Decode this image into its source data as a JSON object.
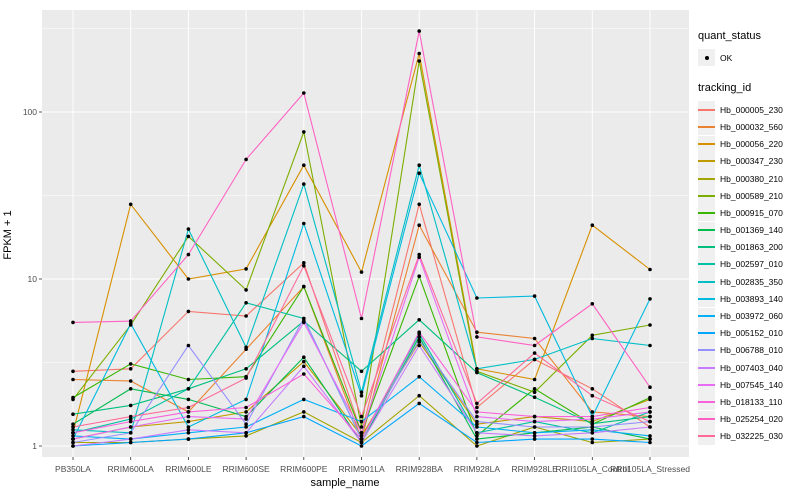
{
  "chart_data": {
    "type": "line",
    "title": "",
    "xlabel": "sample_name",
    "ylabel": "FPKM + 1",
    "y_scale": "log10",
    "y_ticks": [
      "1",
      "10",
      "100"
    ],
    "ylim": [
      1,
      420
    ],
    "grid": true,
    "panel_bg": "#EBEBEB",
    "grid_color": "#FFFFFF",
    "point_color": "#000000",
    "legend_position": "right",
    "legend": {
      "quant_status_title": "quant_status",
      "quant_status_items": [
        {
          "label": "OK"
        }
      ],
      "tracking_title": "tracking_id"
    },
    "x_categories": [
      "PB350LA",
      "RRIM600LA",
      "RRIM600LE",
      "RRIM600SE",
      "RRIM600PE",
      "RRIM901LA",
      "RRIM928BA",
      "RRIM928LA",
      "RRIM928LE",
      "RRII105LA_Control",
      "RRII105LA_Stressed"
    ],
    "series": [
      {
        "name": "Hb_000005_230",
        "color": "#F8766D",
        "values": [
          2.8,
          2.9,
          6.4,
          6.0,
          12.5,
          1.2,
          28,
          1.7,
          3.3,
          2.2,
          1.3
        ]
      },
      {
        "name": "Hb_000032_560",
        "color": "#EA8331",
        "values": [
          2.5,
          2.45,
          1.6,
          3.8,
          9.0,
          1.1,
          21,
          4.8,
          4.4,
          1.6,
          1.5
        ]
      },
      {
        "name": "Hb_000056_220",
        "color": "#D89000",
        "values": [
          1.2,
          28,
          10,
          11.5,
          48,
          11,
          224,
          2.9,
          2.5,
          21,
          11.4
        ]
      },
      {
        "name": "Hb_000347_230",
        "color": "#C09B00",
        "values": [
          1.1,
          1.3,
          1.4,
          1.6,
          3.2,
          1.15,
          4.2,
          1.35,
          1.5,
          1.4,
          1.9
        ]
      },
      {
        "name": "Hb_000380_210",
        "color": "#A3A500",
        "values": [
          1.05,
          1.05,
          1.1,
          1.15,
          1.6,
          1.05,
          2.0,
          1.0,
          1.3,
          1.05,
          1.1
        ]
      },
      {
        "name": "Hb_000589_210",
        "color": "#7CAE00",
        "values": [
          1.9,
          5.3,
          18,
          8.6,
          76,
          1.3,
          202,
          2.8,
          2.1,
          4.6,
          5.3
        ]
      },
      {
        "name": "Hb_000915_070",
        "color": "#39B600",
        "values": [
          1.95,
          3.1,
          2.5,
          2.6,
          9.0,
          1.2,
          10.4,
          1.15,
          2.2,
          1.35,
          1.95
        ]
      },
      {
        "name": "Hb_001369_140",
        "color": "#00BB4E",
        "values": [
          1.35,
          2.2,
          1.9,
          1.5,
          3.4,
          1.05,
          4.5,
          1.1,
          1.2,
          1.3,
          1.1
        ]
      },
      {
        "name": "Hb_001863_200",
        "color": "#00BF7D",
        "values": [
          1.55,
          1.75,
          2.2,
          2.9,
          5.6,
          2.8,
          5.7,
          2.75,
          1.96,
          1.36,
          1.5
        ]
      },
      {
        "name": "Hb_002597_010",
        "color": "#00C1A3",
        "values": [
          1.2,
          1.45,
          2.2,
          7.2,
          5.8,
          1.1,
          4.7,
          1.2,
          1.4,
          1.2,
          1.6
        ]
      },
      {
        "name": "Hb_002835_350",
        "color": "#00BFC4",
        "values": [
          1.25,
          1.2,
          19.9,
          3.9,
          37,
          2.1,
          48,
          2.9,
          3.3,
          4.4,
          4.0
        ]
      },
      {
        "name": "Hb_003893_140",
        "color": "#00BAE0",
        "values": [
          1.1,
          5.4,
          1.3,
          1.9,
          21.5,
          2.0,
          43,
          7.7,
          7.9,
          1.5,
          7.6
        ]
      },
      {
        "name": "Hb_003972_060",
        "color": "#00B0F6",
        "values": [
          1.15,
          1.1,
          1.2,
          1.3,
          1.9,
          1.4,
          2.6,
          1.3,
          1.2,
          1.25,
          1.15
        ]
      },
      {
        "name": "Hb_005152_010",
        "color": "#00A6FF",
        "values": [
          1.0,
          1.05,
          1.1,
          1.2,
          1.5,
          1.0,
          1.8,
          1.05,
          1.1,
          1.1,
          1.05
        ]
      },
      {
        "name": "Hb_006788_010",
        "color": "#9590FF",
        "values": [
          1.05,
          1.2,
          4.0,
          1.35,
          5.8,
          1.1,
          4.3,
          1.4,
          1.3,
          1.3,
          1.4
        ]
      },
      {
        "name": "Hb_007403_040",
        "color": "#C77CFF",
        "values": [
          1.0,
          1.1,
          1.25,
          1.2,
          3.0,
          1.05,
          4.0,
          1.2,
          1.15,
          1.2,
          1.3
        ]
      },
      {
        "name": "Hb_007545_140",
        "color": "#E76BF3",
        "values": [
          1.1,
          1.3,
          1.5,
          1.45,
          5.5,
          1.2,
          13.5,
          1.5,
          1.4,
          1.45,
          1.6
        ]
      },
      {
        "name": "Hb_018133_110",
        "color": "#FA62DB",
        "values": [
          1.2,
          1.4,
          1.6,
          1.7,
          2.7,
          1.1,
          4.8,
          1.6,
          1.5,
          1.5,
          1.7
        ]
      },
      {
        "name": "Hb_025254_020",
        "color": "#FF61C3",
        "values": [
          5.5,
          5.6,
          14,
          52,
          130,
          5.8,
          305,
          4.5,
          4.0,
          7.1,
          2.25
        ]
      },
      {
        "name": "Hb_032225_030",
        "color": "#FF6A98",
        "values": [
          1.3,
          1.5,
          1.7,
          2.55,
          12.0,
          1.5,
          14,
          1.8,
          3.6,
          2.0,
          1.4
        ]
      }
    ]
  }
}
